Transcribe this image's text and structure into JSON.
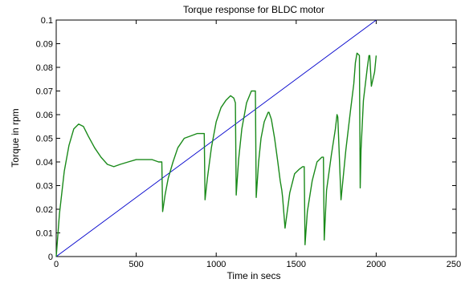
{
  "chart_data": {
    "type": "line",
    "title": "Torque response for BLDC motor",
    "xlabel": "Time in secs",
    "ylabel": "Torque in rpm",
    "xlim": [
      0,
      2500
    ],
    "ylim": [
      0,
      0.1
    ],
    "x_ticks": [
      "0",
      "500",
      "1000",
      "1500",
      "2000",
      "2500"
    ],
    "y_ticks": [
      "0",
      "0.01",
      "0.02",
      "0.03",
      "0.04",
      "0.05",
      "0.06",
      "0.07",
      "0.08",
      "0.09",
      "0.1"
    ],
    "grid": false,
    "series": [
      {
        "color": "#0000cc",
        "x": [
          0,
          2000
        ],
        "y": [
          0,
          0.1
        ]
      },
      {
        "color": "#1a8a1a",
        "x": [
          0,
          20,
          50,
          80,
          110,
          140,
          170,
          200,
          240,
          280,
          320,
          360,
          400,
          450,
          500,
          550,
          600,
          640,
          660,
          665,
          680,
          700,
          730,
          760,
          800,
          840,
          880,
          910,
          925,
          930,
          945,
          970,
          1000,
          1030,
          1060,
          1090,
          1110,
          1120,
          1125,
          1140,
          1160,
          1190,
          1220,
          1240,
          1245,
          1250,
          1265,
          1280,
          1300,
          1325,
          1330,
          1345,
          1365,
          1385,
          1400,
          1410,
          1415,
          1430,
          1460,
          1490,
          1520,
          1540,
          1550,
          1555,
          1570,
          1600,
          1630,
          1660,
          1670,
          1675,
          1690,
          1720,
          1745,
          1755,
          1760,
          1780,
          1810,
          1840,
          1860,
          1870,
          1880,
          1895,
          1900,
          1905,
          1920,
          1945,
          1955,
          1960,
          1970,
          1990,
          2000
        ],
        "y": [
          0,
          0.018,
          0.036,
          0.047,
          0.054,
          0.056,
          0.055,
          0.051,
          0.046,
          0.042,
          0.039,
          0.038,
          0.039,
          0.04,
          0.041,
          0.041,
          0.041,
          0.04,
          0.04,
          0.019,
          0.026,
          0.033,
          0.04,
          0.046,
          0.05,
          0.051,
          0.052,
          0.052,
          0.052,
          0.024,
          0.033,
          0.046,
          0.057,
          0.063,
          0.066,
          0.068,
          0.067,
          0.065,
          0.026,
          0.041,
          0.054,
          0.065,
          0.07,
          0.07,
          0.07,
          0.025,
          0.04,
          0.05,
          0.057,
          0.061,
          0.061,
          0.058,
          0.05,
          0.04,
          0.032,
          0.028,
          0.025,
          0.012,
          0.027,
          0.035,
          0.037,
          0.038,
          0.038,
          0.005,
          0.019,
          0.032,
          0.04,
          0.042,
          0.042,
          0.007,
          0.028,
          0.043,
          0.054,
          0.06,
          0.059,
          0.024,
          0.045,
          0.062,
          0.073,
          0.082,
          0.086,
          0.085,
          0.029,
          0.045,
          0.066,
          0.08,
          0.085,
          0.085,
          0.072,
          0.078,
          0.085
        ]
      }
    ]
  }
}
